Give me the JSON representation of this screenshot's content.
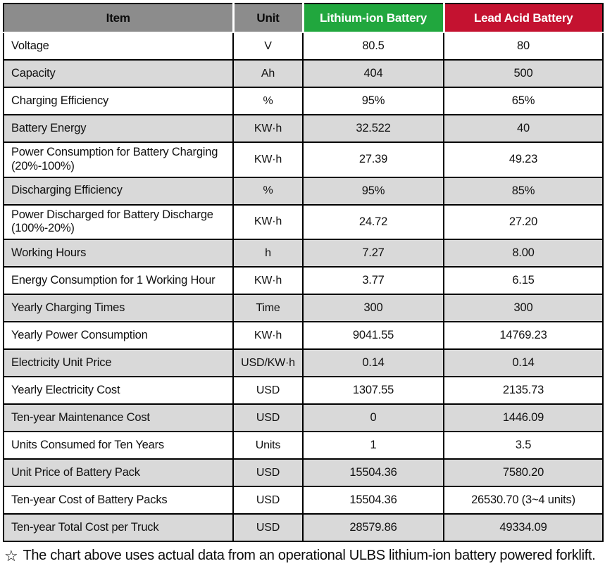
{
  "chart_data": {
    "type": "table",
    "columns": [
      {
        "label": "Item"
      },
      {
        "label": "Unit"
      },
      {
        "label": "Lithium-ion Battery"
      },
      {
        "label": "Lead Acid Battery"
      }
    ],
    "rows": [
      {
        "item": "Voltage",
        "unit": "V",
        "lithium": "80.5",
        "lead": "80"
      },
      {
        "item": "Capacity",
        "unit": "Ah",
        "lithium": "404",
        "lead": "500"
      },
      {
        "item": "Charging Efficiency",
        "unit": "%",
        "lithium": "95%",
        "lead": "65%"
      },
      {
        "item": "Battery Energy",
        "unit": "KW·h",
        "lithium": "32.522",
        "lead": "40"
      },
      {
        "item": "Power Consumption for Battery Charging (20%-100%)",
        "unit": "KW·h",
        "lithium": "27.39",
        "lead": "49.23"
      },
      {
        "item": "Discharging Efficiency",
        "unit": "%",
        "lithium": "95%",
        "lead": "85%"
      },
      {
        "item": "Power Discharged for Battery Discharge (100%-20%)",
        "unit": "KW·h",
        "lithium": "24.72",
        "lead": "27.20"
      },
      {
        "item": "Working Hours",
        "unit": "h",
        "lithium": "7.27",
        "lead": "8.00"
      },
      {
        "item": "Energy Consumption for 1 Working Hour",
        "unit": "KW·h",
        "lithium": "3.77",
        "lead": "6.15"
      },
      {
        "item": "Yearly Charging Times",
        "unit": "Time",
        "lithium": "300",
        "lead": "300"
      },
      {
        "item": "Yearly Power Consumption",
        "unit": "KW·h",
        "lithium": "9041.55",
        "lead": "14769.23"
      },
      {
        "item": "Electricity Unit Price",
        "unit": "USD/KW·h",
        "lithium": "0.14",
        "lead": "0.14"
      },
      {
        "item": "Yearly Electricity Cost",
        "unit": "USD",
        "lithium": "1307.55",
        "lead": "2135.73"
      },
      {
        "item": "Ten-year Maintenance Cost",
        "unit": "USD",
        "lithium": "0",
        "lead": "1446.09"
      },
      {
        "item": "Units Consumed for Ten Years",
        "unit": "Units",
        "lithium": "1",
        "lead": "3.5"
      },
      {
        "item": "Unit Price of Battery Pack",
        "unit": "USD",
        "lithium": "15504.36",
        "lead": "7580.20"
      },
      {
        "item": "Ten-year Cost of Battery Packs",
        "unit": "USD",
        "lithium": "15504.36",
        "lead": "26530.70 (3~4 units)"
      },
      {
        "item": "Ten-year Total Cost per Truck",
        "unit": "USD",
        "lithium": "28579.86",
        "lead": "49334.09"
      }
    ],
    "colors": {
      "header_gray": "#8c8c8c",
      "lithium_green": "#21a73e",
      "lead_red": "#c41230",
      "stripe_gray": "#d9d9d9",
      "border_black": "#000000"
    },
    "legend_position": "none",
    "grid": "on"
  },
  "footnote": {
    "star": "☆",
    "text": "The chart above uses actual data from an operational ULBS lithium-ion battery powered forklift."
  }
}
